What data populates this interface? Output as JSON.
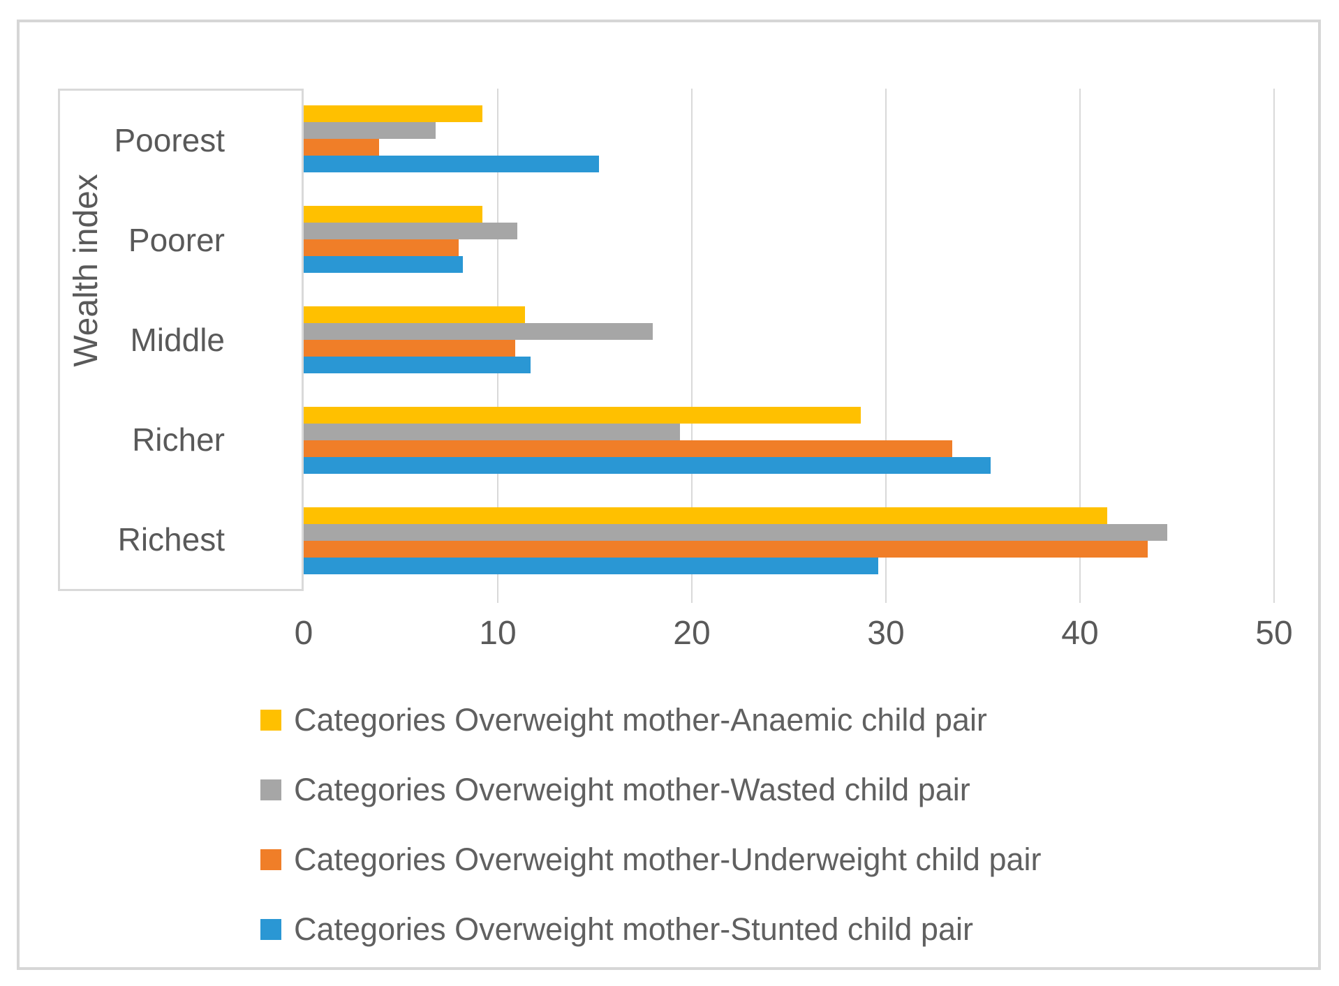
{
  "figure": {
    "y_axis_title": "Wealth index"
  },
  "chart_data": {
    "type": "bar",
    "orientation": "horizontal",
    "title": "",
    "xlabel": "",
    "ylabel": "Wealth index",
    "categories": [
      "Poorest",
      "Poorer",
      "Middle",
      "Richer",
      "Richest"
    ],
    "series": [
      {
        "name": "Categories Overweight mother-Anaemic child pair",
        "color": "#FFC000",
        "values": [
          9.2,
          9.2,
          11.4,
          28.7,
          41.4
        ]
      },
      {
        "name": "Categories Overweight mother-Wasted child pair",
        "color": "#A6A6A6",
        "values": [
          6.8,
          11.0,
          18.0,
          19.4,
          44.5
        ]
      },
      {
        "name": "Categories Overweight mother-Underweight child pair",
        "color": "#F07E28",
        "values": [
          3.9,
          8.0,
          10.9,
          33.4,
          43.5
        ]
      },
      {
        "name": "Categories Overweight mother-Stunted child pair",
        "color": "#2A97D4",
        "values": [
          15.2,
          8.2,
          11.7,
          35.4,
          29.6
        ]
      }
    ],
    "xlim": [
      0,
      50
    ],
    "x_ticks": [
      0,
      10,
      20,
      30,
      40,
      50
    ],
    "grid": true,
    "legend_position": "bottom-left",
    "colors": {
      "gridline": "#d9d9d9",
      "axis_text": "#595959",
      "frame_border": "#d6d6d6"
    }
  }
}
